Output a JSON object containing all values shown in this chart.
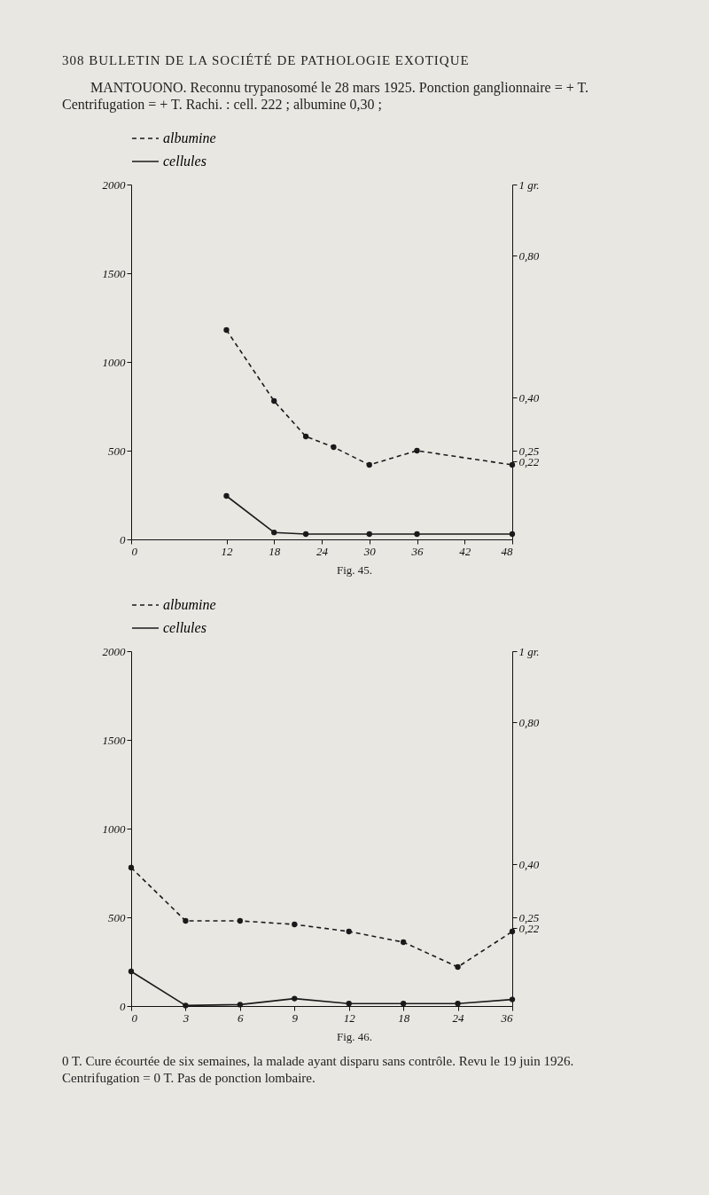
{
  "chart_data": [
    {
      "type": "line",
      "title": "308 BULLETIN DE LA SOCIÉTÉ DE PATHOLOGIE EXOTIQUE",
      "subtitle": "MANTOUONO. Reconnu trypanosomé le 28 mars 1925. Ponction ganglionnaire = + T. Centrifugation = + T. Rachi. : cell. 222 ; albumine 0,30 ;",
      "annotations": [
        "Fig. 45."
      ],
      "xlim": [
        0,
        48
      ],
      "xticks": [
        0,
        12,
        18,
        24,
        30,
        36,
        42,
        48
      ],
      "ylim": [
        0,
        2000
      ],
      "yticks": [
        0,
        500,
        1000,
        1500,
        2000
      ],
      "y2lim": [
        0,
        1
      ],
      "y2ticks": [
        {
          "value": 0.22,
          "label": "0,22"
        },
        {
          "value": 0.25,
          "label": "0,25"
        },
        {
          "value": 0.4,
          "label": "0,40"
        },
        {
          "value": 0.8,
          "label": "0,80"
        },
        {
          "value": 1,
          "label": "1 gr."
        }
      ],
      "grid": false,
      "legend": "top",
      "marker": "circle",
      "series": [
        {
          "name": "albumine",
          "color": "#1a1a1a",
          "line_style": "dashed",
          "axis": "y2",
          "x": [
            12,
            18,
            22,
            25.5,
            30,
            36,
            48
          ],
          "values": [
            0.59,
            0.39,
            0.29,
            0.26,
            0.21,
            0.25,
            0.21
          ]
        },
        {
          "name": "cellules",
          "color": "#1a1a1a",
          "line_style": "solid",
          "x": [
            12,
            18,
            22,
            30,
            36,
            48
          ],
          "values": [
            245,
            39,
            30,
            30,
            30,
            30
          ]
        }
      ]
    },
    {
      "type": "line",
      "annotations": [
        "Fig. 46.",
        "0 T. Cure écourtée de six semaines, la malade ayant disparu sans contrôle. Revu le 19 juin 1926. Centrifugation = 0 T. Pas de ponction lombaire."
      ],
      "categories": [
        "0",
        "3",
        "6",
        "9",
        "12",
        "18",
        "24",
        "36"
      ],
      "ylim": [
        0,
        2000
      ],
      "yticks": [
        0,
        500,
        1000,
        1500,
        2000
      ],
      "y2lim": [
        0,
        1
      ],
      "y2ticks": [
        {
          "value": 0.22,
          "label": "0,22"
        },
        {
          "value": 0.25,
          "label": "0,25"
        },
        {
          "value": 0.4,
          "label": "0,40"
        },
        {
          "value": 0.8,
          "label": "0,80"
        },
        {
          "value": 1,
          "label": "1 gr."
        }
      ],
      "grid": false,
      "legend": "top",
      "marker": "circle",
      "series": [
        {
          "name": "albumine",
          "color": "#1a1a1a",
          "line_style": "dashed",
          "axis": "y2",
          "values": [
            0.39,
            0.24,
            0.24,
            0.23,
            0.21,
            0.18,
            0.11,
            0.21
          ]
        },
        {
          "name": "cellules",
          "color": "#1a1a1a",
          "line_style": "solid",
          "values": [
            195,
            3,
            8,
            42,
            14,
            14,
            14,
            37
          ]
        }
      ]
    }
  ]
}
